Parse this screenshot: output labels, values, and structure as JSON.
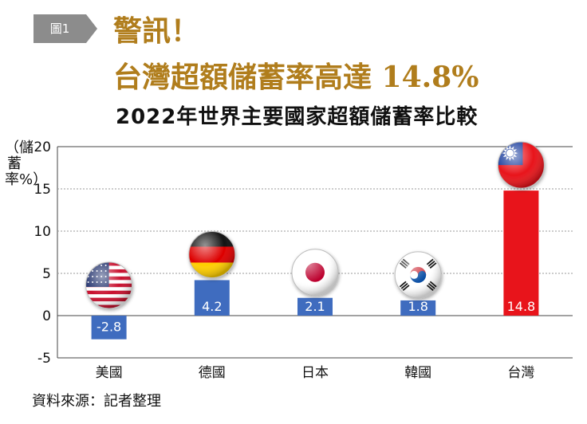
{
  "figure_tag": "圖1",
  "headline": [
    "警訊！",
    "台灣超額儲蓄率高達 14.8%"
  ],
  "colors": {
    "blue": "#3f6cbf",
    "red": "#e8141b",
    "gold": "#b07d1c",
    "grid": "#9a9a9a"
  },
  "chart_data": {
    "type": "bar",
    "title": "2022年世界主要國家超額儲蓄率比較",
    "ylabel": "（儲蓄率%）",
    "xlabel": "",
    "ylim": [
      -5,
      20
    ],
    "yticks": [
      -5,
      0,
      5,
      10,
      15,
      20
    ],
    "grid": true,
    "categories": [
      "美國",
      "德國",
      "日本",
      "韓國",
      "台灣"
    ],
    "values": [
      -2.8,
      4.2,
      2.1,
      1.8,
      14.8
    ],
    "data_labels": [
      "-2.8",
      "4.2",
      "2.1",
      "1.8",
      "14.8"
    ],
    "flag_icons": [
      "us-flag-icon",
      "germany-flag-icon",
      "japan-flag-icon",
      "korea-flag-icon",
      "taiwan-flag-icon"
    ]
  },
  "source": "資料來源：記者整理"
}
